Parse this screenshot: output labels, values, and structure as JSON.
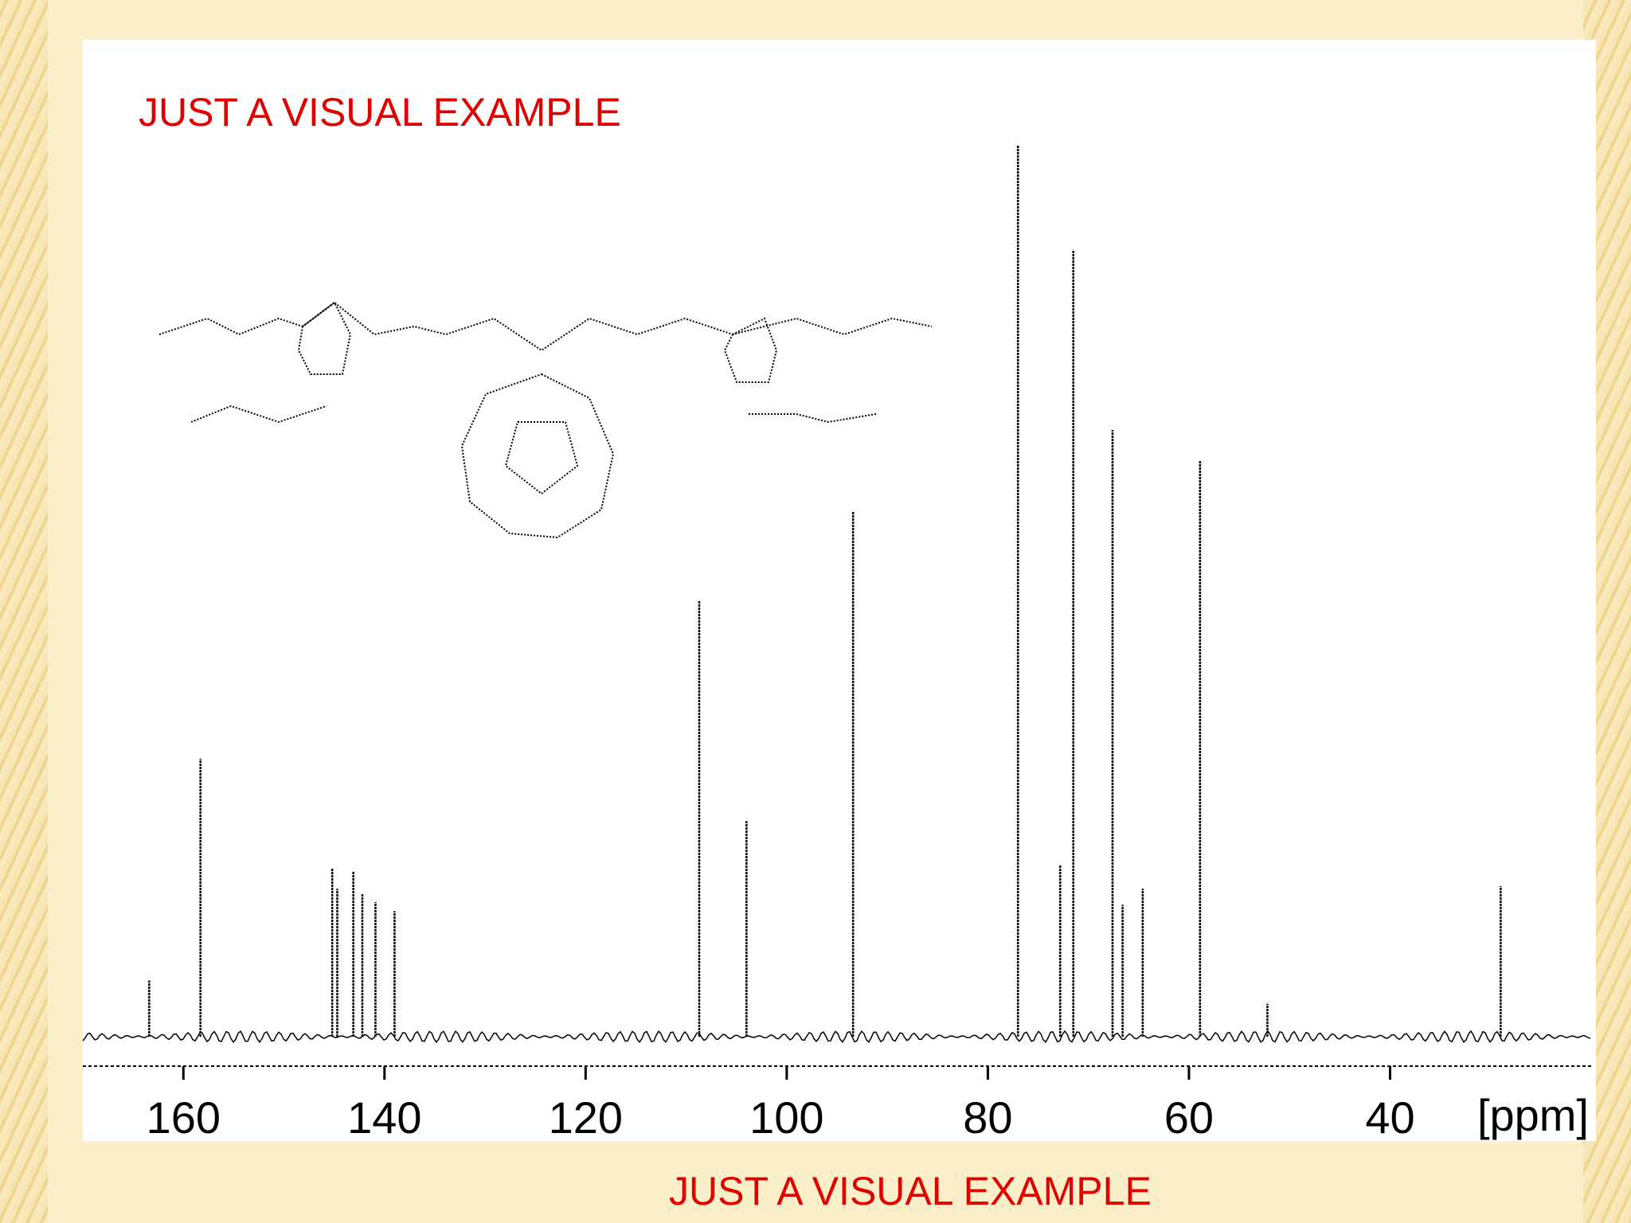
{
  "chart_data": {
    "type": "spectrum",
    "annotations": [
      "JUST A VISUAL EXAMPLE",
      "JUST A VISUAL EXAMPLE"
    ],
    "x_axis_label": "[ppm]",
    "x": [
      163.4,
      158.3,
      145.2,
      144.7,
      143.1,
      142.2,
      140.9,
      139.0,
      108.7,
      104.0,
      93.4,
      77.0,
      72.8,
      71.5,
      67.6,
      66.6,
      64.6,
      58.9,
      52.2,
      29.0
    ],
    "values": [
      6.3,
      31.2,
      18.9,
      16.6,
      18.6,
      16.0,
      15.1,
      14.1,
      48.9,
      24.2,
      58.9,
      100,
      19.3,
      88.3,
      68.1,
      14.8,
      16.6,
      64.6,
      3.7,
      16.9
    ],
    "color": "#000000",
    "xlim": [
      170,
      20
    ],
    "ylim": [
      0,
      100
    ],
    "xticks": [
      160,
      140,
      120,
      100,
      80,
      60,
      40
    ],
    "annotation_color": "#e00000"
  }
}
